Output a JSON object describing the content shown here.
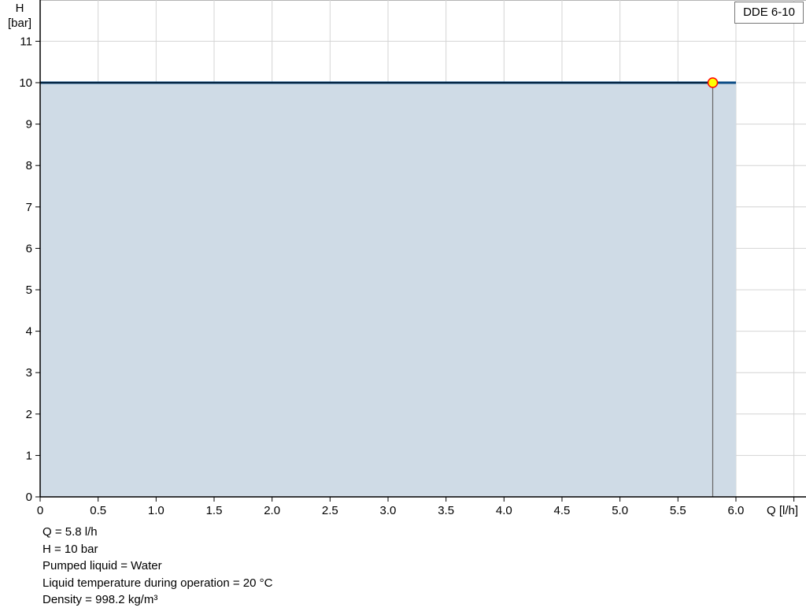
{
  "chart_data": {
    "type": "area",
    "title": "",
    "xlabel": "Q [l/h]",
    "ylabel_line1": "H",
    "ylabel_line2": "[bar]",
    "xlim": [
      0,
      6.5
    ],
    "ylim": [
      0,
      12
    ],
    "x_ticks": [
      "0",
      "0.5",
      "1.0",
      "1.5",
      "2.0",
      "2.5",
      "3.0",
      "3.5",
      "4.0",
      "4.5",
      "5.0",
      "5.5",
      "6.0"
    ],
    "y_ticks": [
      "0",
      "1",
      "2",
      "3",
      "4",
      "5",
      "6",
      "7",
      "8",
      "9",
      "10",
      "11"
    ],
    "grid": true,
    "legend": "top-right",
    "series": [
      {
        "name": "DDE 6-10",
        "x": [
          0,
          6.0
        ],
        "y": [
          10,
          10
        ],
        "color": "#0d4d86",
        "fill": "#cfdbe6"
      }
    ],
    "operating_point": {
      "x": 5.8,
      "y": 10,
      "fill": "#ffff00",
      "stroke": "#ff0000"
    }
  },
  "info": {
    "q": "Q = 5.8 l/h",
    "h": "H = 10 bar",
    "liquid": "Pumped liquid = Water",
    "temperature": "Liquid temperature during operation = 20 °C",
    "density": "Density = 998.2 kg/m³"
  }
}
